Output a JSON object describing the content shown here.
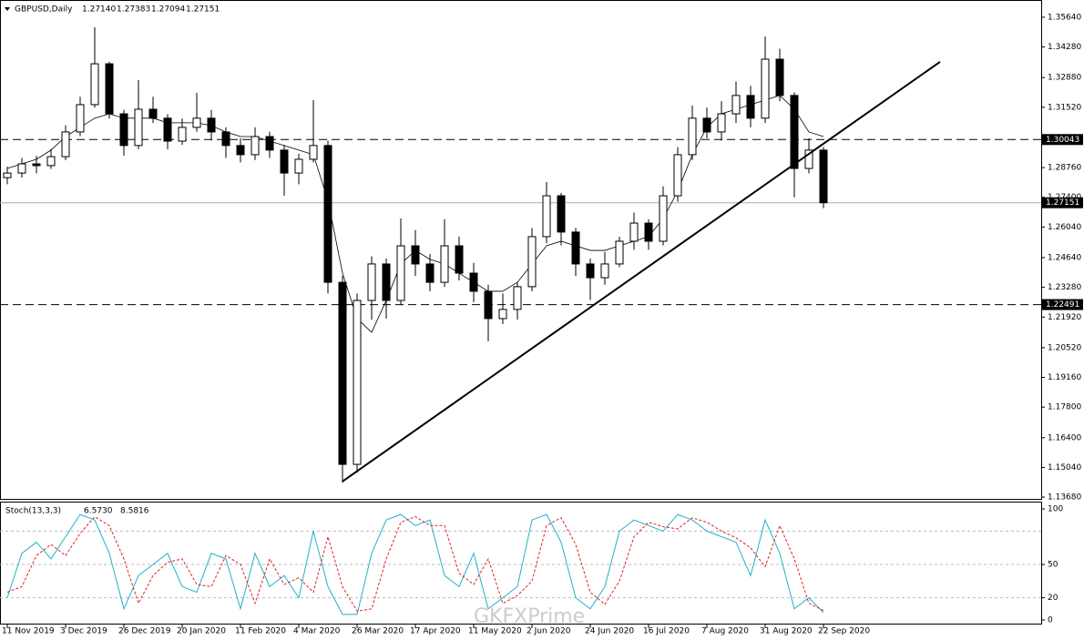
{
  "chart_data": [
    {
      "type": "candlestick",
      "title": "GBPUSD,Daily",
      "header_values": [
        "1.27140",
        "1.27383",
        "1.27094",
        "1.27151"
      ],
      "categories": [
        "11 Nov 2019",
        null,
        null,
        null,
        "3 Dec 2019",
        null,
        null,
        null,
        "26 Dec 2019",
        null,
        null,
        null,
        "20 Jan 2020",
        null,
        null,
        null,
        "11 Feb 2020",
        null,
        null,
        null,
        "4 Mar 2020",
        null,
        null,
        null,
        "26 Mar 2020",
        null,
        null,
        null,
        "17 Apr 2020",
        null,
        null,
        null,
        "11 May 2020",
        null,
        null,
        null,
        "2 Jun 2020",
        null,
        null,
        null,
        "24 Jun 2020",
        null,
        null,
        null,
        "16 Jul 2020",
        null,
        null,
        null,
        "7 Aug 2020",
        null,
        null,
        null,
        "31 Aug 2020",
        null,
        null,
        null,
        "22 Sep 2020"
      ],
      "open": [
        1.283,
        1.2851,
        1.2893,
        1.2885,
        1.2926,
        1.3039,
        1.3164,
        1.3351,
        1.3122,
        1.2977,
        1.3143,
        1.3102,
        1.2997,
        1.306,
        1.3102,
        1.3039,
        1.2977,
        1.2935,
        1.3018,
        1.2956,
        1.2851,
        1.2914,
        1.2977,
        1.2351,
        1.1518,
        1.2268,
        1.2435,
        1.2268,
        1.2518,
        1.2435,
        1.2351,
        1.2518,
        1.2393,
        1.231,
        1.2185,
        1.2227,
        1.2331,
        1.256,
        1.2747,
        1.2581,
        1.2435,
        1.2372,
        1.2435,
        1.2539,
        1.2622,
        1.2539,
        1.2747,
        1.2935,
        1.3102,
        1.3039,
        1.3122,
        1.3206,
        1.3102,
        1.3372,
        1.3206,
        1.2872,
        1.2956
      ],
      "high": [
        1.288,
        1.292,
        1.293,
        1.296,
        1.307,
        1.32,
        1.3518,
        1.336,
        1.314,
        1.3276,
        1.32,
        1.312,
        1.31,
        1.3218,
        1.314,
        1.306,
        1.301,
        1.306,
        1.304,
        1.298,
        1.294,
        1.3185,
        1.3,
        1.238,
        1.23,
        1.247,
        1.246,
        1.2643,
        1.259,
        1.248,
        1.264,
        1.256,
        1.244,
        1.234,
        1.23,
        1.235,
        1.26,
        1.281,
        1.276,
        1.26,
        1.246,
        1.249,
        1.256,
        1.267,
        1.264,
        1.279,
        1.297,
        1.316,
        1.315,
        1.318,
        1.327,
        1.325,
        1.3476,
        1.342,
        1.322,
        1.301,
        1.297
      ],
      "low": [
        1.28,
        1.283,
        1.285,
        1.287,
        1.291,
        1.302,
        1.315,
        1.31,
        1.293,
        1.296,
        1.308,
        1.296,
        1.298,
        1.304,
        1.3,
        1.292,
        1.29,
        1.291,
        1.292,
        1.2747,
        1.28,
        1.29,
        1.23,
        1.1435,
        1.148,
        1.218,
        1.2185,
        1.225,
        1.238,
        1.231,
        1.233,
        1.236,
        1.226,
        1.2081,
        1.216,
        1.218,
        1.231,
        1.253,
        1.252,
        1.238,
        1.227,
        1.234,
        1.242,
        1.25,
        1.25,
        1.252,
        1.272,
        1.291,
        1.301,
        1.3,
        1.308,
        1.306,
        1.308,
        1.318,
        1.274,
        1.285,
        1.269
      ],
      "close": [
        1.2851,
        1.2893,
        1.2885,
        1.2926,
        1.3039,
        1.3164,
        1.3351,
        1.3122,
        1.2977,
        1.3143,
        1.3102,
        1.2997,
        1.306,
        1.3102,
        1.3039,
        1.2977,
        1.2935,
        1.3018,
        1.2956,
        1.2851,
        1.2914,
        1.2977,
        1.2351,
        1.1518,
        1.2268,
        1.2435,
        1.2268,
        1.2518,
        1.2435,
        1.2351,
        1.2518,
        1.2393,
        1.231,
        1.2185,
        1.2227,
        1.2331,
        1.256,
        1.2747,
        1.2581,
        1.2435,
        1.2372,
        1.2435,
        1.2539,
        1.2622,
        1.2539,
        1.2747,
        1.2935,
        1.3102,
        1.3039,
        1.3122,
        1.3206,
        1.3102,
        1.3372,
        1.3206,
        1.2872,
        1.2956,
        1.27151
      ],
      "ma": [
        1.2872,
        1.2893,
        1.2914,
        1.2956,
        1.3018,
        1.306,
        1.3102,
        1.3122,
        1.3102,
        1.3102,
        1.3102,
        1.3081,
        1.3081,
        1.3081,
        1.3068,
        1.3039,
        1.3018,
        1.3018,
        1.2997,
        1.2977,
        1.2956,
        1.2935,
        1.2727,
        1.2393,
        1.2185,
        1.2122,
        1.2268,
        1.2435,
        1.2497,
        1.2456,
        1.2435,
        1.2393,
        1.2351,
        1.231,
        1.231,
        1.2351,
        1.2435,
        1.2518,
        1.2539,
        1.2518,
        1.2497,
        1.2497,
        1.2518,
        1.2539,
        1.256,
        1.2643,
        1.2768,
        1.2935,
        1.306,
        1.3122,
        1.3143,
        1.3164,
        1.3185,
        1.3206,
        1.3143,
        1.3039,
        1.3018
      ],
      "ylim": [
        1.136,
        1.3622
      ],
      "yticks": [
        {
          "value": 1.3564,
          "label": "1.35640"
        },
        {
          "value": 1.3428,
          "label": "1.34280"
        },
        {
          "value": 1.3288,
          "label": "1.32880"
        },
        {
          "value": 1.3152,
          "label": "1.31520"
        },
        {
          "value": 1.2876,
          "label": "1.28760"
        },
        {
          "value": 1.274,
          "label": "1.27400"
        },
        {
          "value": 1.2604,
          "label": "1.26040"
        },
        {
          "value": 1.2464,
          "label": "1.24640"
        },
        {
          "value": 1.2328,
          "label": "1.23280"
        },
        {
          "value": 1.2192,
          "label": "1.21920"
        },
        {
          "value": 1.2052,
          "label": "1.20520"
        },
        {
          "value": 1.1916,
          "label": "1.19160"
        },
        {
          "value": 1.178,
          "label": "1.17800"
        },
        {
          "value": 1.164,
          "label": "1.16400"
        },
        {
          "value": 1.1504,
          "label": "1.15040"
        },
        {
          "value": 1.1368,
          "label": "1.13680"
        }
      ],
      "levels": [
        {
          "value": 1.30043,
          "label": "1.30043"
        },
        {
          "value": 1.22491,
          "label": "1.22491"
        }
      ],
      "current": {
        "value": 1.27151,
        "label": "1.27151"
      },
      "trendline": {
        "x": [
          23,
          64
        ],
        "y": [
          1.144,
          1.336
        ]
      },
      "watermark": "GKFXPrime"
    },
    {
      "type": "line",
      "title": "Stoch(13,3,3)",
      "header_values": [
        "6.5730",
        "8.5816"
      ],
      "series": [
        {
          "color": "#20b2c8",
          "values": [
            20,
            60,
            70,
            55,
            75,
            95,
            90,
            60,
            10,
            40,
            50,
            60,
            30,
            25,
            60,
            55,
            10,
            60,
            30,
            40,
            20,
            80,
            30,
            5,
            5,
            60,
            90,
            95,
            85,
            90,
            40,
            30,
            60,
            10,
            20,
            30,
            90,
            95,
            70,
            20,
            10,
            30,
            80,
            90,
            85,
            80,
            95,
            90,
            80,
            75,
            70,
            40,
            90,
            60,
            10,
            20,
            6.573
          ]
        },
        {
          "color": "#e02020",
          "values": [
            25,
            30,
            58,
            68,
            58,
            78,
            93,
            85,
            55,
            15,
            40,
            52,
            55,
            32,
            30,
            58,
            50,
            15,
            55,
            32,
            38,
            25,
            75,
            30,
            8,
            10,
            55,
            88,
            93,
            85,
            85,
            42,
            32,
            55,
            15,
            22,
            35,
            85,
            92,
            68,
            25,
            14,
            35,
            75,
            88,
            84,
            82,
            92,
            88,
            80,
            74,
            65,
            48,
            85,
            55,
            15,
            8.5816
          ]
        }
      ],
      "ylim": [
        0,
        100
      ],
      "yticks": [
        0,
        20,
        50,
        100
      ],
      "levels": [
        20,
        50,
        80
      ]
    }
  ]
}
